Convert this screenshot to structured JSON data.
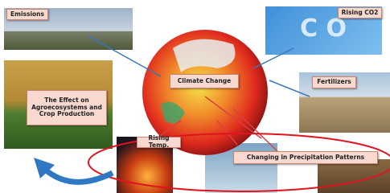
{
  "nodes": [
    {
      "label": "Emissions"
    },
    {
      "label": "Rising CO2"
    },
    {
      "label": "Climate Change"
    },
    {
      "label": "Fertilizers"
    },
    {
      "label": "The Effect on Agroecosystems and Crop Production"
    },
    {
      "label": "Rising Temp."
    },
    {
      "label": "Changing in Precipitation Patterns"
    }
  ]
}
